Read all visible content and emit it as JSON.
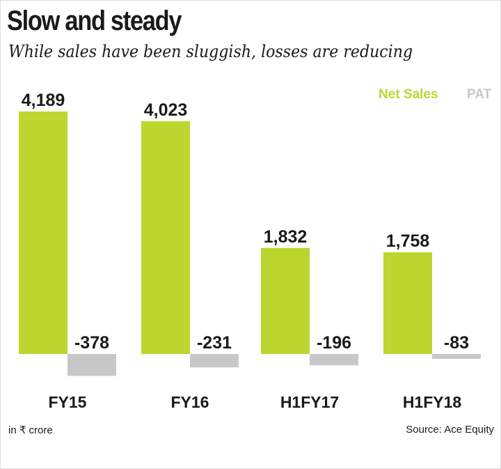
{
  "header": {
    "title": "Slow and steady",
    "subtitle": "While sales have been sluggish, losses are reducing"
  },
  "legend": {
    "net_sales": "Net Sales",
    "pat": "PAT"
  },
  "colors": {
    "net_sales": "#bdd62f",
    "pat": "#c8c8c8",
    "text": "#1a1a1a"
  },
  "footer": {
    "unit": "in ₹ crore",
    "source": "Source: Ace Equity"
  },
  "chart_data": {
    "type": "bar",
    "title": "Slow and steady",
    "subtitle": "While sales have been sluggish, losses are reducing",
    "categories": [
      "FY15",
      "FY16",
      "H1FY17",
      "H1FY18"
    ],
    "series": [
      {
        "name": "Net Sales",
        "values": [
          4189,
          4023,
          1832,
          1758
        ],
        "labels": [
          "4,189",
          "4,023",
          "1,832",
          "1,758"
        ]
      },
      {
        "name": "PAT",
        "values": [
          -378,
          -231,
          -196,
          -83
        ],
        "labels": [
          "-378",
          "-231",
          "-196",
          "-83"
        ]
      }
    ],
    "xlabel": "",
    "ylabel": "",
    "unit": "in ₹ crore",
    "grid": false,
    "legend_position": "top-right"
  }
}
